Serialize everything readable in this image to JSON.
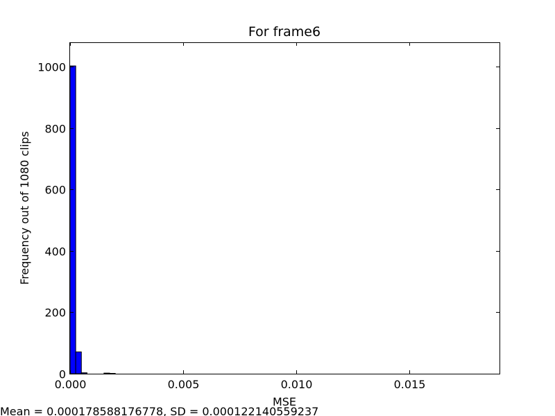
{
  "chart_data": {
    "type": "bar",
    "title": "For frame6",
    "xlabel": "MSE",
    "ylabel": "Frequency out of 1080 clips",
    "xlim": [
      0,
      0.019
    ],
    "ylim": [
      0,
      1080
    ],
    "xticks": [
      {
        "value": 0.0,
        "label": "0.000"
      },
      {
        "value": 0.005,
        "label": "0.005"
      },
      {
        "value": 0.01,
        "label": "0.010"
      },
      {
        "value": 0.015,
        "label": "0.015"
      }
    ],
    "yticks": [
      {
        "value": 0,
        "label": "0"
      },
      {
        "value": 200,
        "label": "200"
      },
      {
        "value": 400,
        "label": "400"
      },
      {
        "value": 600,
        "label": "600"
      },
      {
        "value": 800,
        "label": "800"
      },
      {
        "value": 1000,
        "label": "1000"
      }
    ],
    "bin_width": 0.00025,
    "bins": [
      {
        "x0": 0.0,
        "count": 1003
      },
      {
        "x0": 0.00025,
        "count": 71
      },
      {
        "x0": 0.0005,
        "count": 3
      },
      {
        "x0": 0.0015,
        "count": 2
      },
      {
        "x0": 0.00175,
        "count": 1
      }
    ],
    "bar_color": "#0000ff",
    "grid": false,
    "footnote": "Mean = 0.000178588176778, SD = 0.000122140559237"
  }
}
